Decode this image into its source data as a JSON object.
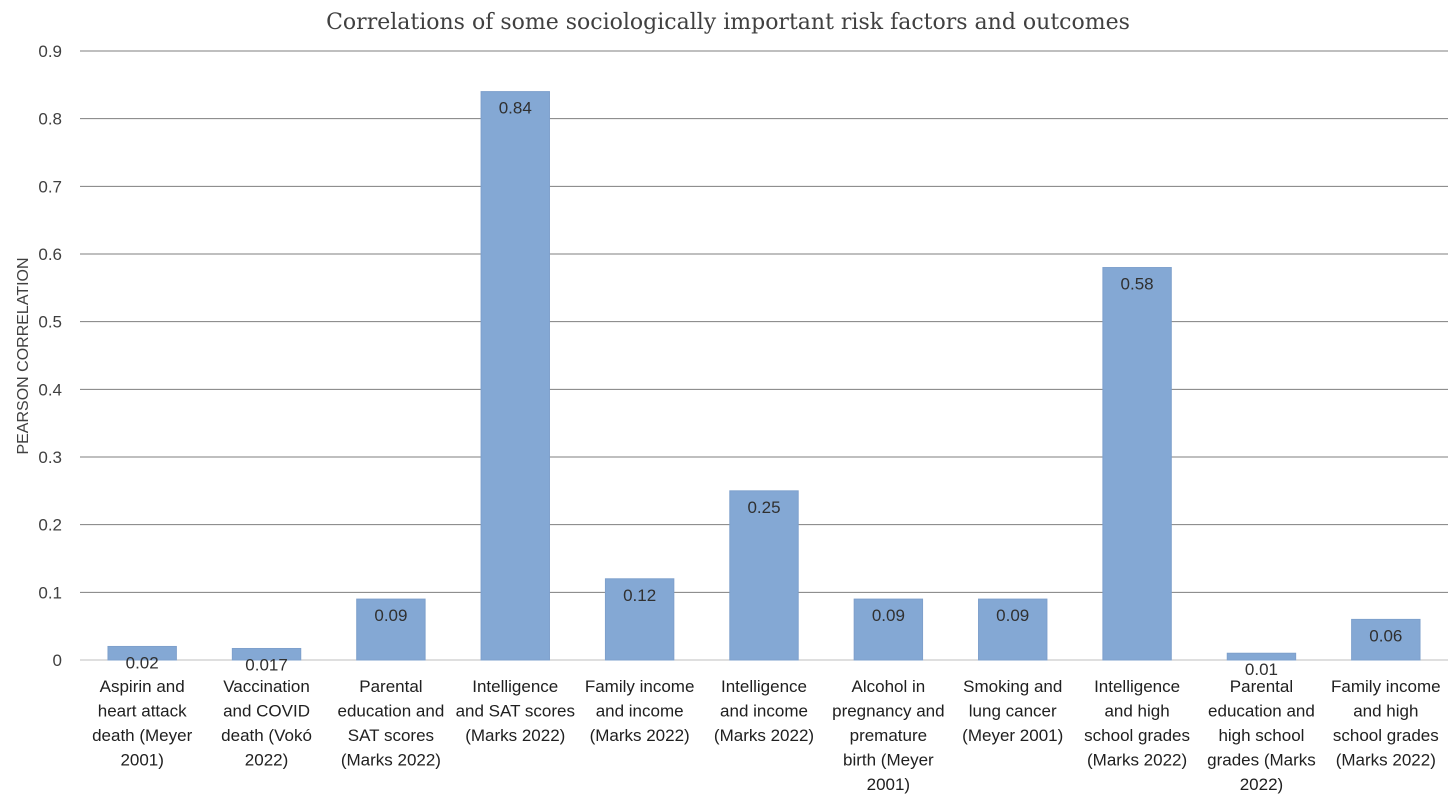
{
  "chart_data": {
    "type": "bar",
    "title": "Correlations of some sociologically important risk factors and outcomes",
    "ylabel": "PEARSON CORRELATION",
    "xlabel": "",
    "ylim": [
      0,
      0.9
    ],
    "yticks": [
      "0",
      "0.1",
      "0.2",
      "0.3",
      "0.4",
      "0.5",
      "0.6",
      "0.7",
      "0.8",
      "0.9"
    ],
    "grid": true,
    "legend": "none",
    "bar_color": "#84a8d4",
    "categories": [
      [
        "Aspirin and",
        "heart attack",
        "death (Meyer",
        "2001)"
      ],
      [
        "Vaccination",
        "and COVID",
        "death (Vokó",
        "2022)"
      ],
      [
        "Parental",
        "education and",
        "SAT scores",
        "(Marks 2022)"
      ],
      [
        "Intelligence",
        "and SAT scores",
        "(Marks 2022)"
      ],
      [
        "Family income",
        "and income",
        "(Marks 2022)"
      ],
      [
        "Intelligence",
        "and income",
        "(Marks 2022)"
      ],
      [
        "Alcohol in",
        "pregnancy and",
        "premature",
        "birth (Meyer",
        "2001)"
      ],
      [
        "Smoking and",
        "lung cancer",
        "(Meyer 2001)"
      ],
      [
        "Intelligence",
        "and high",
        "school grades",
        "(Marks 2022)"
      ],
      [
        "Parental",
        "education and",
        "high school",
        "grades (Marks",
        "2022)"
      ],
      [
        "Family income",
        "and high",
        "school grades",
        "(Marks 2022)"
      ]
    ],
    "values": [
      0.02,
      0.017,
      0.09,
      0.84,
      0.12,
      0.25,
      0.09,
      0.09,
      0.58,
      0.01,
      0.06
    ],
    "data_labels": [
      "0.02",
      "0.017",
      "0.09",
      "0.84",
      "0.12",
      "0.25",
      "0.09",
      "0.09",
      "0.58",
      "0.01",
      "0.06"
    ]
  }
}
